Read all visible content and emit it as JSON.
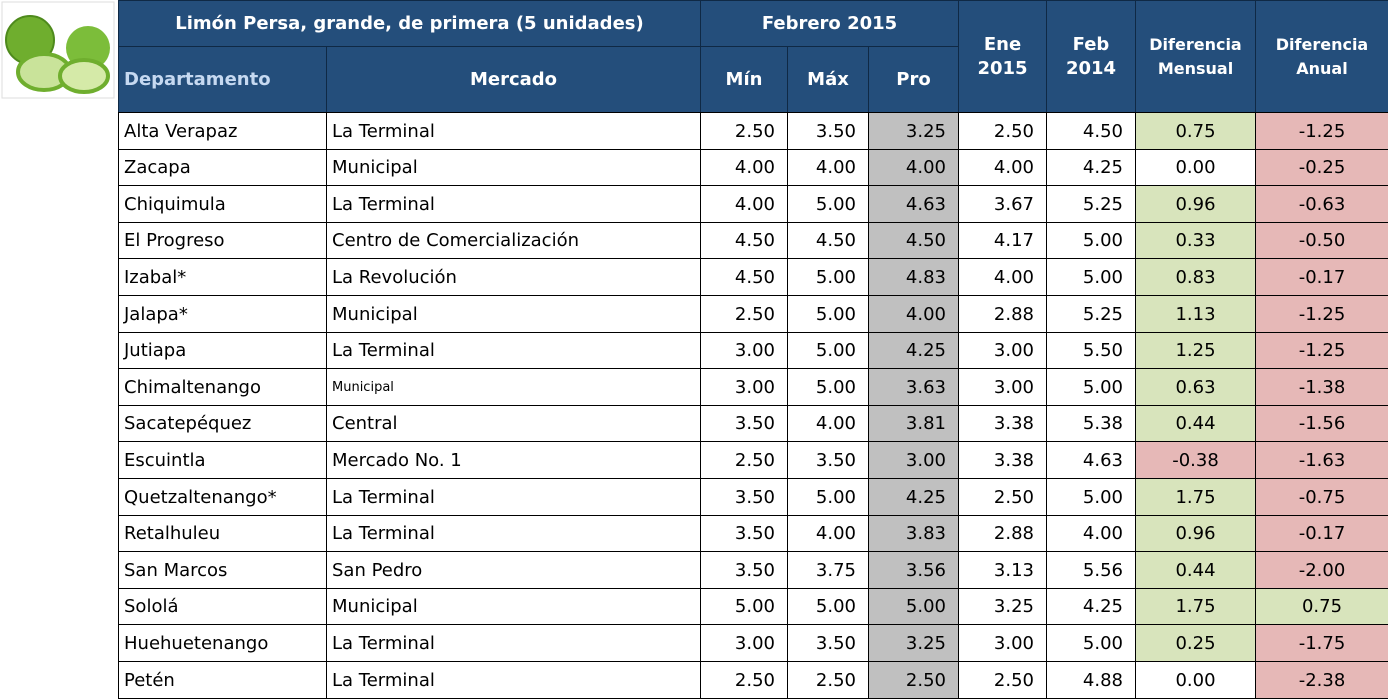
{
  "header": {
    "title": "Limón Persa, grande, de primera (5 unidades)",
    "period": "Febrero 2015",
    "columns": [
      "Departamento",
      "Mercado",
      "Mín",
      "Máx",
      "Pro"
    ],
    "ene": [
      "Ene",
      "2015"
    ],
    "feb": [
      "Feb",
      "2014"
    ],
    "monthly_diff": [
      "Diferencia",
      "Mensual"
    ],
    "annual_diff": [
      "Diferencia",
      "Anual"
    ]
  },
  "table": {
    "rows": [
      [
        "Alta Verapaz",
        "La Terminal",
        "2.50",
        "3.50",
        "3.25",
        "2.50",
        "4.50",
        "0.75",
        "-1.25"
      ],
      [
        "Zacapa",
        "Municipal",
        "4.00",
        "4.00",
        "4.00",
        "4.00",
        "4.25",
        "0.00",
        "-0.25"
      ],
      [
        "Chiquimula",
        "La Terminal",
        "4.00",
        "5.00",
        "4.63",
        "3.67",
        "5.25",
        "0.96",
        "-0.63"
      ],
      [
        "El Progreso",
        "Centro de Comercialización",
        "4.50",
        "4.50",
        "4.50",
        "4.17",
        "5.00",
        "0.33",
        "-0.50"
      ],
      [
        "Izabal*",
        "La Revolución",
        "4.50",
        "5.00",
        "4.83",
        "4.00",
        "5.00",
        "0.83",
        "-0.17"
      ],
      [
        "Jalapa*",
        "Municipal",
        "2.50",
        "5.00",
        "4.00",
        "2.88",
        "5.25",
        "1.13",
        "-1.25"
      ],
      [
        "Jutiapa",
        "La Terminal",
        "3.00",
        "5.00",
        "4.25",
        "3.00",
        "5.50",
        "1.25",
        "-1.25"
      ],
      [
        "Chimaltenango",
        "Municipal",
        "3.00",
        "5.00",
        "3.63",
        "3.00",
        "5.00",
        "0.63",
        "-1.38"
      ],
      [
        "Sacatepéquez",
        "Central",
        "3.50",
        "4.00",
        "3.81",
        "3.38",
        "5.38",
        "0.44",
        "-1.56"
      ],
      [
        "Escuintla",
        "Mercado No. 1",
        "2.50",
        "3.50",
        "3.00",
        "3.38",
        "4.63",
        "-0.38",
        "-1.63"
      ],
      [
        "Quetzaltenango*",
        "La Terminal",
        "3.50",
        "5.00",
        "4.25",
        "2.50",
        "5.00",
        "1.75",
        "-0.75"
      ],
      [
        "Retalhuleu",
        "La Terminal",
        "3.50",
        "4.00",
        "3.83",
        "2.88",
        "4.00",
        "0.96",
        "-0.17"
      ],
      [
        "San Marcos",
        "San Pedro",
        "3.50",
        "3.75",
        "3.56",
        "3.13",
        "5.56",
        "0.44",
        "-2.00"
      ],
      [
        "Sololá",
        "Municipal",
        "5.00",
        "5.00",
        "5.00",
        "3.25",
        "4.25",
        "1.75",
        "0.75"
      ],
      [
        "Huehuetenango",
        "La Terminal",
        "3.00",
        "3.50",
        "3.25",
        "3.00",
        "5.00",
        "0.25",
        "-1.75"
      ],
      [
        "Petén",
        "La Terminal",
        "2.50",
        "2.50",
        "2.50",
        "2.50",
        "4.88",
        "0.00",
        "-2.38"
      ]
    ]
  }
}
